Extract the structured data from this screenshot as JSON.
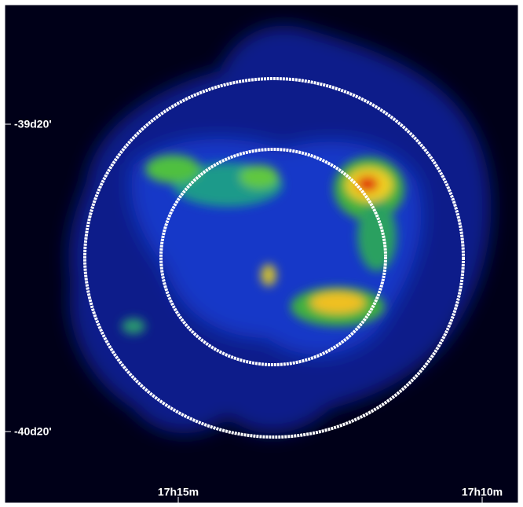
{
  "axes": {
    "dec_labels": [
      "-39d20'",
      "-40d20'"
    ],
    "ra_labels": [
      "17h15m",
      "17h10m"
    ]
  }
}
